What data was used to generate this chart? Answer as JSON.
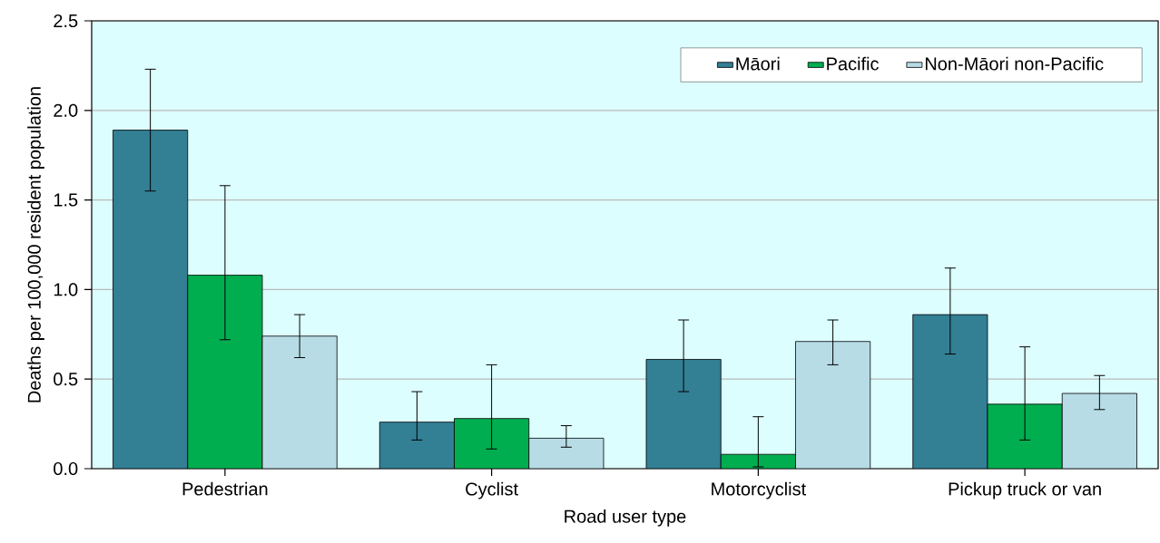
{
  "chart_data": {
    "type": "bar",
    "xlabel": "Road user type",
    "ylabel": "Deaths per 100,000 resident population",
    "categories": [
      "Pedestrian",
      "Cyclist",
      "Motorcyclist",
      "Pickup truck or van"
    ],
    "series": [
      {
        "name": "Māori",
        "color": "#337f94",
        "values": [
          1.89,
          0.26,
          0.61,
          0.86
        ],
        "errors": [
          [
            1.55,
            2.23
          ],
          [
            0.16,
            0.43
          ],
          [
            0.43,
            0.83
          ],
          [
            0.64,
            1.12
          ]
        ]
      },
      {
        "name": "Pacific",
        "color": "#00ae4f",
        "values": [
          1.08,
          0.28,
          0.08,
          0.36
        ],
        "errors": [
          [
            0.72,
            1.58
          ],
          [
            0.11,
            0.58
          ],
          [
            0.01,
            0.29
          ],
          [
            0.16,
            0.68
          ]
        ]
      },
      {
        "name": "Non-Māori non-Pacific",
        "color": "#b7dce6",
        "values": [
          0.74,
          0.17,
          0.71,
          0.42
        ],
        "errors": [
          [
            0.62,
            0.86
          ],
          [
            0.12,
            0.24
          ],
          [
            0.58,
            0.83
          ],
          [
            0.33,
            0.52
          ]
        ]
      }
    ],
    "ylim": [
      0,
      2.5
    ],
    "yticks": [
      {
        "value": 0,
        "label": "0.0"
      },
      {
        "value": 0.5,
        "label": "0.5"
      },
      {
        "value": 1,
        "label": "1.0"
      },
      {
        "value": 1.5,
        "label": "1.5"
      },
      {
        "value": 2,
        "label": "2.0"
      },
      {
        "value": 2.5,
        "label": "2.5"
      }
    ],
    "grid": "y",
    "legend": "top right"
  }
}
